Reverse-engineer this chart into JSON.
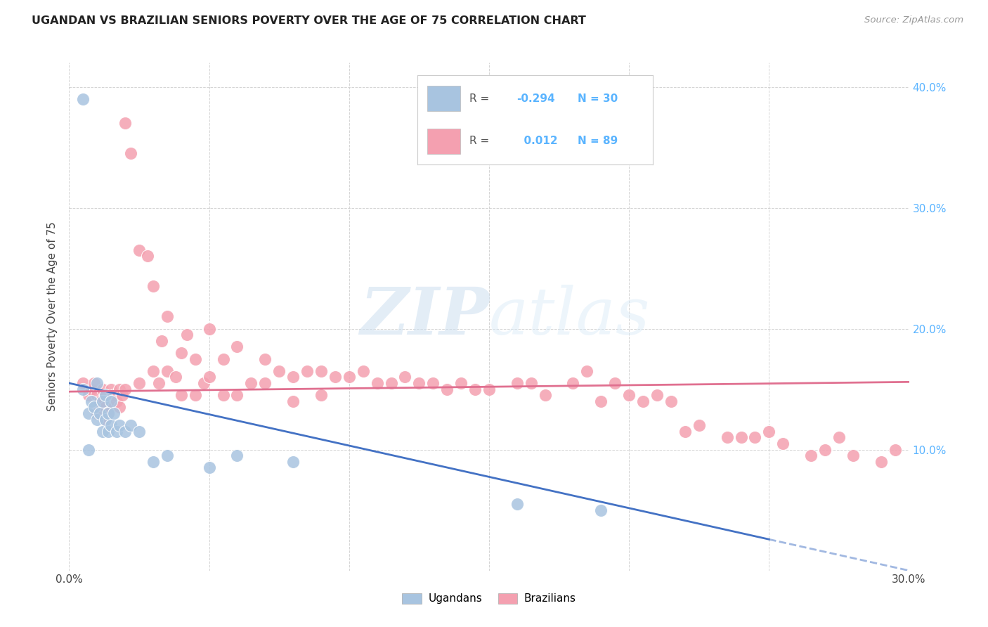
{
  "title": "UGANDAN VS BRAZILIAN SENIORS POVERTY OVER THE AGE OF 75 CORRELATION CHART",
  "source": "Source: ZipAtlas.com",
  "ylabel": "Seniors Poverty Over the Age of 75",
  "xlim": [
    0.0,
    0.3
  ],
  "ylim": [
    0.0,
    0.42
  ],
  "legend_r_uganda": "-0.294",
  "legend_n_uganda": "30",
  "legend_r_brazil": "0.012",
  "legend_n_brazil": "89",
  "uganda_color": "#a8c4e0",
  "brazil_color": "#f4a0b0",
  "uganda_line_color": "#4472c4",
  "brazil_line_color": "#e07090",
  "background_color": "#ffffff",
  "grid_color": "#d0d0d0",
  "ug_x": [
    0.005,
    0.005,
    0.007,
    0.007,
    0.008,
    0.009,
    0.01,
    0.01,
    0.011,
    0.012,
    0.012,
    0.013,
    0.013,
    0.014,
    0.014,
    0.015,
    0.015,
    0.016,
    0.017,
    0.018,
    0.02,
    0.022,
    0.025,
    0.03,
    0.035,
    0.05,
    0.06,
    0.08,
    0.16,
    0.19
  ],
  "ug_y": [
    0.39,
    0.15,
    0.13,
    0.1,
    0.14,
    0.135,
    0.155,
    0.125,
    0.13,
    0.14,
    0.115,
    0.145,
    0.125,
    0.13,
    0.115,
    0.14,
    0.12,
    0.13,
    0.115,
    0.12,
    0.115,
    0.12,
    0.115,
    0.09,
    0.095,
    0.085,
    0.095,
    0.09,
    0.055,
    0.05
  ],
  "br_x": [
    0.005,
    0.007,
    0.008,
    0.009,
    0.01,
    0.01,
    0.011,
    0.012,
    0.012,
    0.013,
    0.013,
    0.014,
    0.015,
    0.015,
    0.016,
    0.017,
    0.018,
    0.018,
    0.019,
    0.02,
    0.02,
    0.022,
    0.025,
    0.025,
    0.028,
    0.03,
    0.03,
    0.032,
    0.033,
    0.035,
    0.035,
    0.038,
    0.04,
    0.04,
    0.042,
    0.045,
    0.045,
    0.048,
    0.05,
    0.05,
    0.055,
    0.055,
    0.06,
    0.06,
    0.065,
    0.07,
    0.07,
    0.075,
    0.08,
    0.08,
    0.085,
    0.09,
    0.09,
    0.095,
    0.1,
    0.105,
    0.11,
    0.115,
    0.12,
    0.125,
    0.13,
    0.135,
    0.14,
    0.145,
    0.15,
    0.16,
    0.165,
    0.17,
    0.18,
    0.185,
    0.19,
    0.195,
    0.2,
    0.205,
    0.21,
    0.215,
    0.22,
    0.225,
    0.235,
    0.24,
    0.245,
    0.25,
    0.255,
    0.265,
    0.27,
    0.275,
    0.28,
    0.29,
    0.295
  ],
  "br_y": [
    0.155,
    0.145,
    0.15,
    0.155,
    0.145,
    0.13,
    0.14,
    0.14,
    0.15,
    0.135,
    0.125,
    0.13,
    0.15,
    0.14,
    0.145,
    0.14,
    0.135,
    0.15,
    0.145,
    0.15,
    0.37,
    0.345,
    0.265,
    0.155,
    0.26,
    0.235,
    0.165,
    0.155,
    0.19,
    0.165,
    0.21,
    0.16,
    0.18,
    0.145,
    0.195,
    0.175,
    0.145,
    0.155,
    0.16,
    0.2,
    0.175,
    0.145,
    0.185,
    0.145,
    0.155,
    0.175,
    0.155,
    0.165,
    0.16,
    0.14,
    0.165,
    0.165,
    0.145,
    0.16,
    0.16,
    0.165,
    0.155,
    0.155,
    0.16,
    0.155,
    0.155,
    0.15,
    0.155,
    0.15,
    0.15,
    0.155,
    0.155,
    0.145,
    0.155,
    0.165,
    0.14,
    0.155,
    0.145,
    0.14,
    0.145,
    0.14,
    0.115,
    0.12,
    0.11,
    0.11,
    0.11,
    0.115,
    0.105,
    0.095,
    0.1,
    0.11,
    0.095,
    0.09,
    0.1
  ]
}
